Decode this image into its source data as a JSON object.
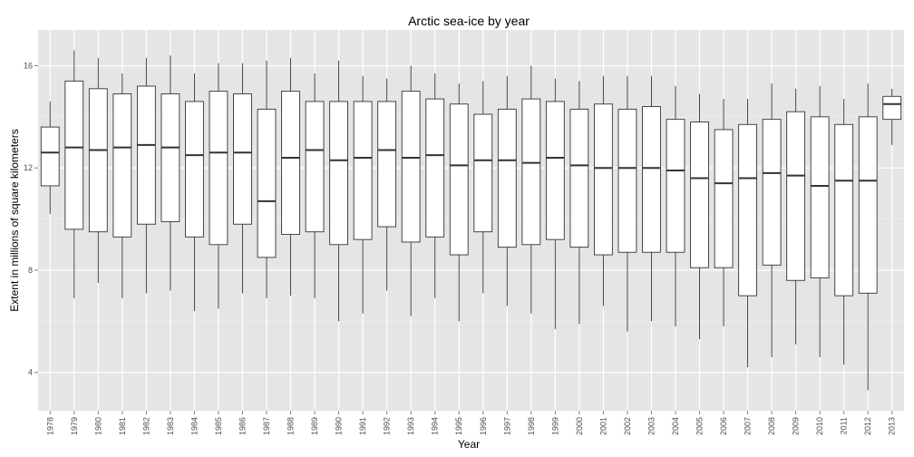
{
  "chart_data": {
    "type": "boxplot",
    "title": "Arctic sea-ice by year",
    "xlabel": "Year",
    "ylabel": "Extent in millions of square kilometers",
    "ylim": [
      2.5,
      17.4
    ],
    "y_ticks": [
      4,
      8,
      12,
      16
    ],
    "grid": true,
    "legend": "none",
    "colors": {
      "panel": "#e5e5e5",
      "grid_major": "#ffffff",
      "grid_minor": "#f2f2f2",
      "box_fill": "#ffffff",
      "box_line": "#333333"
    },
    "categories": [
      "1978",
      "1979",
      "1980",
      "1981",
      "1982",
      "1983",
      "1984",
      "1985",
      "1986",
      "1987",
      "1988",
      "1989",
      "1990",
      "1991",
      "1992",
      "1993",
      "1994",
      "1995",
      "1996",
      "1997",
      "1998",
      "1999",
      "2000",
      "2001",
      "2002",
      "2003",
      "2004",
      "2005",
      "2006",
      "2007",
      "2008",
      "2009",
      "2010",
      "2011",
      "2012",
      "2013"
    ],
    "series": [
      {
        "min": [
          10.2,
          6.9,
          7.5,
          6.9,
          7.1,
          7.2,
          6.4,
          6.5,
          7.1,
          6.9,
          7.0,
          6.9,
          6.0,
          6.3,
          7.2,
          6.2,
          6.9,
          6.0,
          7.1,
          6.6,
          6.3,
          5.7,
          5.9,
          6.6,
          5.6,
          6.0,
          5.8,
          5.3,
          5.8,
          4.2,
          4.6,
          5.1,
          4.6,
          4.3,
          3.3,
          12.9
        ],
        "q1": [
          11.3,
          9.6,
          9.5,
          9.3,
          9.8,
          9.9,
          9.3,
          9.0,
          9.8,
          8.5,
          9.4,
          9.5,
          9.0,
          9.2,
          9.7,
          9.1,
          9.3,
          8.6,
          9.5,
          8.9,
          9.0,
          9.2,
          8.9,
          8.6,
          8.7,
          8.7,
          8.7,
          8.1,
          8.1,
          7.0,
          8.2,
          7.6,
          7.7,
          7.0,
          7.1,
          13.9
        ],
        "median": [
          12.6,
          12.8,
          12.7,
          12.8,
          12.9,
          12.8,
          12.5,
          12.6,
          12.6,
          10.7,
          12.4,
          12.7,
          12.3,
          12.4,
          12.7,
          12.4,
          12.5,
          12.1,
          12.3,
          12.3,
          12.2,
          12.4,
          12.1,
          12.0,
          12.0,
          12.0,
          11.9,
          11.6,
          11.4,
          11.6,
          11.8,
          11.7,
          11.3,
          11.5,
          11.5,
          14.5
        ],
        "q3": [
          13.6,
          15.4,
          15.1,
          14.9,
          15.2,
          14.9,
          14.6,
          15.0,
          14.9,
          14.3,
          15.0,
          14.6,
          14.6,
          14.6,
          14.6,
          15.0,
          14.7,
          14.5,
          14.1,
          14.3,
          14.7,
          14.6,
          14.3,
          14.5,
          14.3,
          14.4,
          13.9,
          13.8,
          13.5,
          13.7,
          13.9,
          14.2,
          14.0,
          13.7,
          14.0,
          14.8
        ],
        "max": [
          14.6,
          16.6,
          16.3,
          15.7,
          16.3,
          16.4,
          15.7,
          16.1,
          16.1,
          16.2,
          16.3,
          15.7,
          16.2,
          15.6,
          15.5,
          16.0,
          15.7,
          15.3,
          15.4,
          15.6,
          16.0,
          15.5,
          15.4,
          15.6,
          15.6,
          15.6,
          15.2,
          14.9,
          14.7,
          14.7,
          15.3,
          15.1,
          15.2,
          14.7,
          15.3,
          15.1
        ]
      }
    ]
  }
}
